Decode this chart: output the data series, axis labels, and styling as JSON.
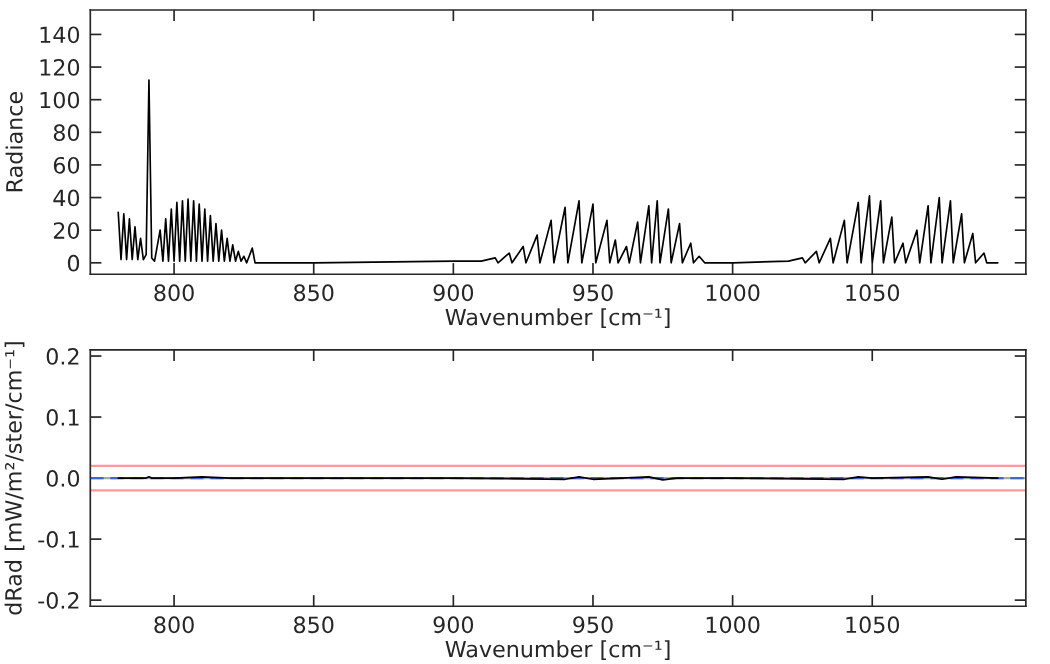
{
  "chart_data": [
    {
      "type": "line",
      "xlabel": "Wavenumber [cm⁻¹]",
      "ylabel": "Radiance",
      "xlim": [
        770,
        1105
      ],
      "xticks": [
        800,
        850,
        900,
        950,
        1000,
        1050
      ],
      "ylim": [
        -7,
        155
      ],
      "yticks": [
        0,
        20,
        40,
        60,
        80,
        100,
        120,
        140
      ],
      "grid": false,
      "legend": false,
      "marker": "none",
      "line_style": "solid",
      "series": [
        {
          "color": "#000000",
          "x": [
            780,
            781,
            782,
            783,
            784,
            785,
            786,
            787,
            788,
            789,
            790,
            791,
            792,
            793,
            795,
            796,
            797,
            798,
            799,
            800,
            801,
            802,
            803,
            804,
            805,
            806,
            807,
            808,
            809,
            810,
            811,
            812,
            813,
            814,
            815,
            816,
            817,
            818,
            819,
            820,
            821,
            822,
            823,
            824,
            825,
            826,
            828,
            829,
            850,
            900,
            910,
            915,
            916,
            920,
            921,
            925,
            926,
            930,
            931,
            935,
            936,
            940,
            941,
            945,
            946,
            950,
            951,
            955,
            956,
            958,
            959,
            962,
            963,
            966,
            967,
            970,
            971,
            973,
            974,
            977,
            978,
            981,
            982,
            985,
            986,
            988,
            990,
            1000,
            1020,
            1025,
            1026,
            1030,
            1031,
            1035,
            1036,
            1040,
            1041,
            1045,
            1046,
            1049,
            1050,
            1053,
            1054,
            1057,
            1058,
            1061,
            1062,
            1066,
            1067,
            1070,
            1071,
            1074,
            1075,
            1078,
            1079,
            1082,
            1083,
            1086,
            1087,
            1090,
            1091,
            1095
          ],
          "values": [
            31,
            2,
            30,
            2,
            27,
            2,
            22,
            2,
            15,
            2,
            5,
            112,
            3,
            1,
            20,
            1,
            27,
            1,
            33,
            1,
            37,
            1,
            38,
            1,
            39,
            1,
            38,
            1,
            36,
            1,
            33,
            1,
            29,
            1,
            24,
            1,
            20,
            1,
            15,
            1,
            11,
            1,
            7,
            1,
            4,
            0,
            9,
            0,
            0,
            1,
            1,
            3,
            0,
            6,
            0,
            10,
            0,
            17,
            0,
            26,
            0,
            34,
            0,
            38,
            0,
            36,
            0,
            26,
            0,
            14,
            0,
            10,
            0,
            25,
            0,
            35,
            0,
            38,
            0,
            33,
            0,
            24,
            0,
            12,
            0,
            4,
            0,
            0,
            1,
            3,
            0,
            7,
            0,
            15,
            0,
            26,
            0,
            37,
            0,
            41,
            0,
            38,
            0,
            28,
            0,
            12,
            0,
            20,
            0,
            35,
            0,
            40,
            0,
            38,
            0,
            30,
            0,
            18,
            0,
            6,
            0,
            0
          ]
        }
      ]
    },
    {
      "type": "line",
      "xlabel": "Wavenumber [cm⁻¹]",
      "ylabel": "dRad [mW/m²/ster/cm⁻¹]",
      "xlim": [
        770,
        1105
      ],
      "xticks": [
        800,
        850,
        900,
        950,
        1000,
        1050
      ],
      "ylim": [
        -0.21,
        0.21
      ],
      "yticks": [
        {
          "value": -0.2,
          "label": "-0.2"
        },
        {
          "value": -0.1,
          "label": "-0.1"
        },
        {
          "value": 0,
          "label": "0.0"
        },
        {
          "value": 0.1,
          "label": "0.1"
        },
        {
          "value": 0.2,
          "label": "0.2"
        }
      ],
      "grid": false,
      "legend": false,
      "marker": "none",
      "line_style": "solid",
      "ref_lines": [
        {
          "axis": "y",
          "value": 0.02,
          "color": "#ff9999",
          "line_style": "solid"
        },
        {
          "axis": "y",
          "value": -0.02,
          "color": "#ff9999",
          "line_style": "solid"
        },
        {
          "axis": "y",
          "value": 0,
          "color": "#aaaaaa",
          "line_style": "solid"
        },
        {
          "axis": "y",
          "value": 0,
          "color": "#4466cc",
          "line_style": "dashed"
        }
      ],
      "series": [
        {
          "color": "#000000",
          "x": [
            780,
            785,
            790,
            791,
            792,
            800,
            810,
            820,
            850,
            900,
            940,
            945,
            950,
            970,
            975,
            980,
            1000,
            1040,
            1045,
            1050,
            1070,
            1075,
            1080,
            1095
          ],
          "values": [
            0,
            0,
            0,
            0.002,
            0,
            0,
            0.002,
            0,
            0,
            0,
            -0.002,
            0.002,
            -0.002,
            0.002,
            -0.003,
            0,
            0,
            -0.002,
            0.002,
            0,
            0.002,
            -0.002,
            0.002,
            0
          ]
        }
      ]
    }
  ]
}
